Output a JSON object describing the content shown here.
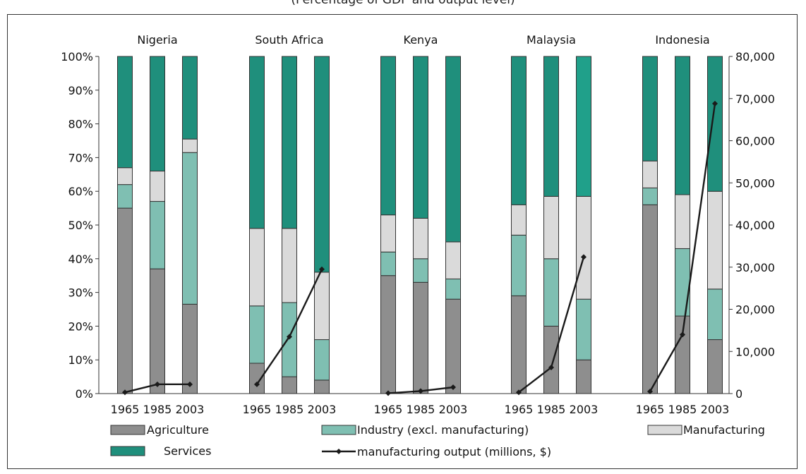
{
  "top_caption": "(Percentage of GDP and output level)",
  "chart_data": {
    "type": "bar",
    "stacked": true,
    "title": "",
    "xlabel": "",
    "ylabel": "",
    "y2label": "",
    "ylim": [
      0,
      100
    ],
    "y2lim": [
      0,
      80000
    ],
    "yticks": [
      "0%",
      "10%",
      "20%",
      "30%",
      "40%",
      "50%",
      "60%",
      "70%",
      "80%",
      "90%",
      "100%"
    ],
    "y2ticks": [
      "0",
      "10,000",
      "20,000",
      "30,000",
      "40,000",
      "50,000",
      "60,000",
      "70,000",
      "80,000"
    ],
    "years": [
      "1965",
      "1985",
      "2003"
    ],
    "groups": [
      {
        "country": "Nigeria",
        "agriculture": [
          55,
          37,
          26.5
        ],
        "industry": [
          7,
          20,
          45
        ],
        "manufacturing": [
          5,
          9,
          4
        ],
        "services": [
          33,
          34,
          24.5
        ],
        "output": [
          300,
          2200,
          2200
        ]
      },
      {
        "country": "South Africa",
        "agriculture": [
          9,
          5,
          4
        ],
        "industry": [
          17,
          22,
          12
        ],
        "manufacturing": [
          23,
          22,
          20
        ],
        "services": [
          51,
          51,
          64
        ],
        "output": [
          2200,
          13500,
          29500
        ]
      },
      {
        "country": "Kenya",
        "agriculture": [
          35,
          33,
          28
        ],
        "industry": [
          7,
          7,
          6
        ],
        "manufacturing": [
          11,
          12,
          11
        ],
        "services": [
          47,
          48,
          55
        ],
        "output": [
          100,
          600,
          1500
        ]
      },
      {
        "country": "Malaysia",
        "agriculture": [
          29,
          20,
          10
        ],
        "industry": [
          18,
          20,
          18
        ],
        "manufacturing": [
          9,
          18.5,
          30.5
        ],
        "services": [
          44,
          41.5,
          41.5
        ],
        "output": [
          300,
          6200,
          32400
        ]
      },
      {
        "country": "Indonesia",
        "agriculture": [
          56,
          23,
          16
        ],
        "industry": [
          5,
          20,
          15
        ],
        "manufacturing": [
          8,
          16,
          29
        ],
        "services": [
          31,
          41,
          40
        ],
        "output": [
          500,
          14000,
          68800
        ]
      }
    ],
    "legend": {
      "agriculture": "Agriculture",
      "industry": "Industry (excl. manufacturing)",
      "manufacturing": "Manufacturing",
      "services": "Services",
      "output": "manufacturing output (millions, $)"
    },
    "colors": {
      "agriculture": "#8e8e8e",
      "industry": "#7fbfb2",
      "manufacturing": "#dadada",
      "services": "#1f8f7c",
      "services_malaysia_2003": "#20a08a",
      "output_line": "#1a1a1a"
    },
    "grid": false,
    "legend_position": "bottom"
  }
}
